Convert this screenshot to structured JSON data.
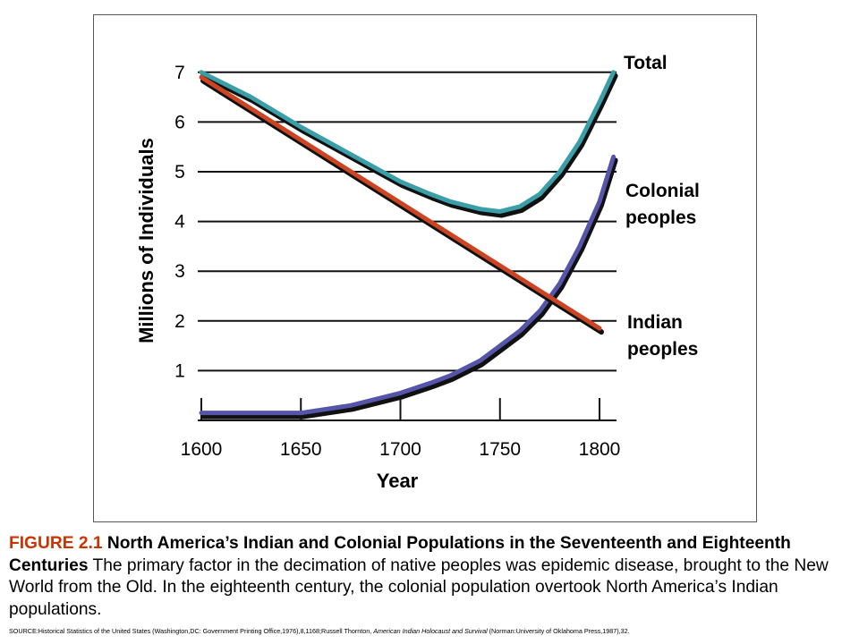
{
  "chart_data": {
    "type": "line",
    "xlabel": "Year",
    "ylabel": "Millions of Individuals",
    "xlim": [
      1600,
      1810
    ],
    "ylim": [
      0,
      7.5
    ],
    "x_ticks": [
      "1600",
      "1650",
      "1700",
      "1750",
      "1800"
    ],
    "y_ticks": [
      "1",
      "2",
      "3",
      "4",
      "5",
      "6",
      "7"
    ],
    "grid": "horizontal",
    "series": [
      {
        "name": "Total",
        "color": "#3a9fa8",
        "x": [
          1600,
          1625,
          1650,
          1675,
          1700,
          1715,
          1725,
          1740,
          1750,
          1760,
          1770,
          1780,
          1790,
          1800,
          1807
        ],
        "y": [
          7.0,
          6.5,
          5.9,
          5.35,
          4.8,
          4.55,
          4.4,
          4.25,
          4.2,
          4.3,
          4.55,
          5.0,
          5.6,
          6.4,
          7.0
        ]
      },
      {
        "name": "Colonial peoples",
        "color": "#5555aa",
        "x": [
          1600,
          1625,
          1650,
          1675,
          1700,
          1715,
          1725,
          1740,
          1750,
          1760,
          1770,
          1780,
          1790,
          1800,
          1807
        ],
        "y": [
          0.15,
          0.15,
          0.15,
          0.3,
          0.55,
          0.75,
          0.9,
          1.2,
          1.5,
          1.8,
          2.2,
          2.75,
          3.5,
          4.4,
          5.3
        ]
      },
      {
        "name": "Indian peoples",
        "color": "#cc4422",
        "x": [
          1600,
          1800
        ],
        "y": [
          6.9,
          1.85
        ]
      }
    ]
  },
  "caption": {
    "figure_number": "FIGURE 2.1",
    "figure_title": "North America’s Indian and Colonial Populations in the Seventeenth and Eighteenth Centuries",
    "body": "The primary factor in the decimation of native peoples was epidemic disease, brought to the New World from the Old. In the eighteenth century, the colonial population overtook North America’s Indian populations."
  },
  "source": {
    "prefix": "SOURCE:Historical Statistics of the United States (Washington,DC: Government Printing Office,1976),8,1168;Russell Thornton, ",
    "book_title": "American Indian Holocaust and Survival",
    "suffix": " (Norman:University of Oklahoma Press,1987),32."
  }
}
